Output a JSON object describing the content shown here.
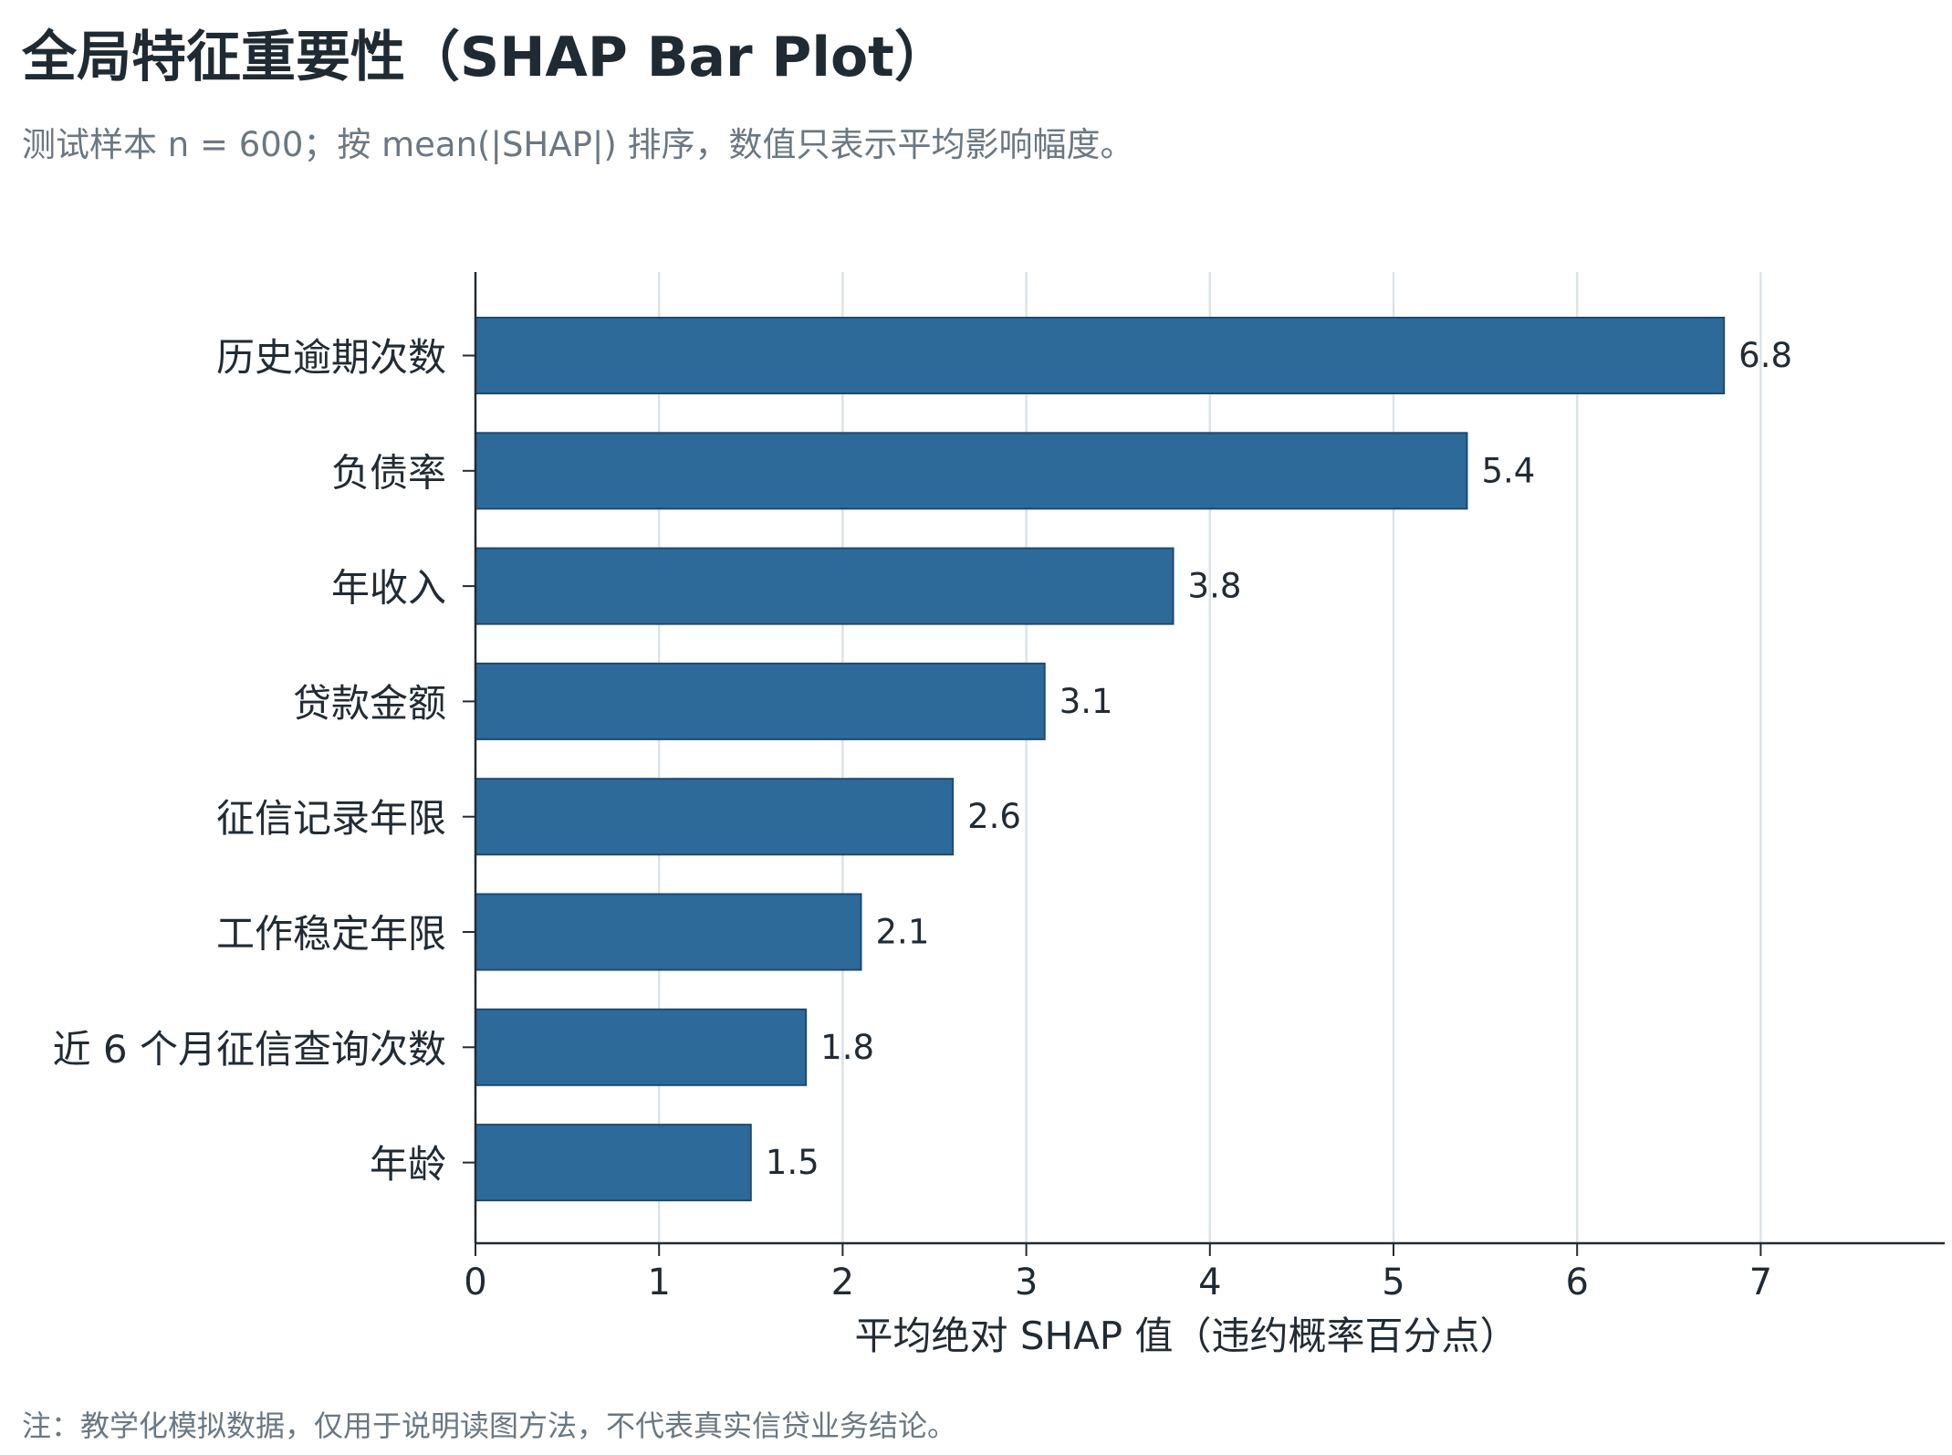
{
  "header": {
    "title": "全局特征重要性（SHAP Bar Plot）",
    "subtitle": "测试样本 n = 600；按 mean(|SHAP|) 排序，数值只表示平均影响幅度。"
  },
  "footer": {
    "note": "注：教学化模拟数据，仅用于说明读图方法，不代表真实信贷业务结论。"
  },
  "colors": {
    "bar_fill": "#2e6a99",
    "bar_edge": "#1e4a70",
    "grid": "#dce3e8",
    "axis": "#222b33"
  },
  "chart_data": {
    "type": "bar",
    "orientation": "horizontal",
    "categories": [
      "历史逾期次数",
      "负债率",
      "年收入",
      "贷款金额",
      "征信记录年限",
      "工作稳定年限",
      "近 6 个月征信查询次数",
      "年龄"
    ],
    "values": [
      6.8,
      5.4,
      3.8,
      3.1,
      2.6,
      2.1,
      1.8,
      1.5
    ],
    "value_labels": [
      "6.8",
      "5.4",
      "3.8",
      "3.1",
      "2.6",
      "2.1",
      "1.8",
      "1.5"
    ],
    "xlabel": "平均绝对 SHAP 值（违约概率百分点）",
    "ylabel": "",
    "xlim": [
      0,
      8
    ],
    "xticks": [
      0,
      1,
      2,
      3,
      4,
      5,
      6,
      7
    ],
    "grid": "vertical"
  }
}
